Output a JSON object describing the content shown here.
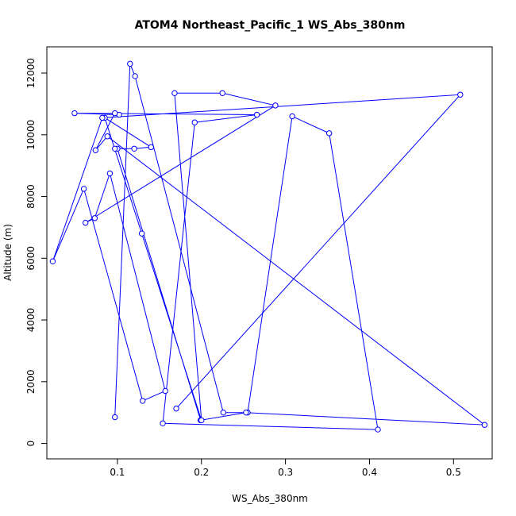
{
  "chart_data": {
    "type": "line",
    "title": "ATOM4 Northeast_Pacific_1 WS_Abs_380nm",
    "xlabel": "WS_Abs_380nm",
    "ylabel": "Altitude (m)",
    "xlim": [
      0.016,
      0.546
    ],
    "ylim": [
      -500,
      12850
    ],
    "xticks": [
      0.1,
      0.2,
      0.3,
      0.4,
      0.5
    ],
    "yticks": [
      0,
      2000,
      4000,
      6000,
      8000,
      10000,
      12000
    ],
    "xtick_labels": [
      "0.1",
      "0.2",
      "0.3",
      "0.4",
      "0.5"
    ],
    "ytick_labels": [
      "0",
      "2000",
      "4000",
      "6000",
      "8000",
      "10000",
      "12000"
    ],
    "grid": false,
    "marker": "open-circle",
    "color": "#0000ff",
    "x": [
      0.097,
      0.115,
      0.121,
      0.226,
      0.255,
      0.308,
      0.352,
      0.41,
      0.154,
      0.192,
      0.266,
      0.049,
      0.102,
      0.097,
      0.074,
      0.088,
      0.537,
      0.253,
      0.199,
      0.1,
      0.097,
      0.12,
      0.14,
      0.085,
      0.129,
      0.2,
      0.168,
      0.225,
      0.288,
      0.062,
      0.073,
      0.091,
      0.157,
      0.13,
      0.06,
      0.023,
      0.082,
      0.508,
      0.17
    ],
    "y": [
      850,
      12300,
      11900,
      1000,
      1000,
      10600,
      10050,
      450,
      650,
      10400,
      10650,
      10700,
      10650,
      10700,
      9500,
      9950,
      600,
      1000,
      750,
      9550,
      9550,
      9550,
      9600,
      10550,
      6800,
      750,
      11350,
      11350,
      10950,
      7150,
      7300,
      8750,
      1700,
      1380,
      8250,
      5900,
      10550,
      11300,
      1130
    ]
  }
}
